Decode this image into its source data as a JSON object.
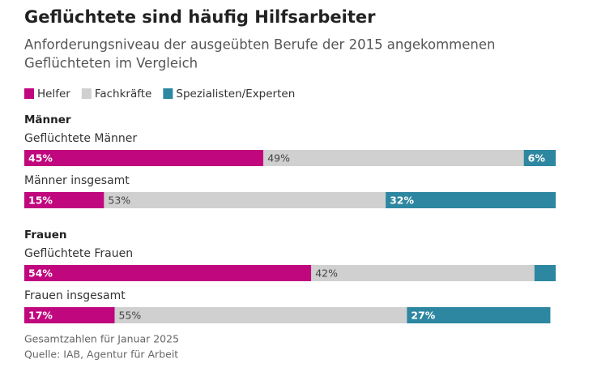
{
  "chart_data": {
    "type": "stacked-bar-horizontal",
    "title": "Geflüchtete sind häufig Hilfsarbeiter",
    "subtitle": [
      "Anforderungsniveau der ausgeübten Berufe der 2015 angekommenen",
      "Geflüchteten im Vergleich"
    ],
    "groups": [
      {
        "name": "Männer",
        "categories": [
          "Geflüchtete Männer",
          "Männer insgesamt"
        ]
      },
      {
        "name": "Frauen",
        "categories": [
          "Geflüchtete Frauen",
          "Frauen insgesamt"
        ]
      }
    ],
    "series": [
      {
        "name": "Helfer",
        "color": "#c0077e",
        "values": [
          45,
          15,
          54,
          17
        ],
        "value_labels": [
          "45%",
          "15%",
          "54%",
          "17%"
        ]
      },
      {
        "name": "Fachkräfte",
        "color": "#d0d0d0",
        "values": [
          49,
          53,
          42,
          55
        ],
        "value_labels": [
          "49%",
          "53%",
          "42%",
          "55%"
        ]
      },
      {
        "name": "Spezialisten/Experten",
        "color": "#2e87a0",
        "values": [
          6,
          32,
          4,
          27
        ],
        "value_labels": [
          "6%",
          "32%",
          null,
          "27%"
        ]
      }
    ],
    "xlim": [
      0,
      100
    ],
    "notes": [
      "Gesamtzahlen für Januar 2025",
      "Quelle: IAB, Agentur für Arbeit"
    ]
  }
}
